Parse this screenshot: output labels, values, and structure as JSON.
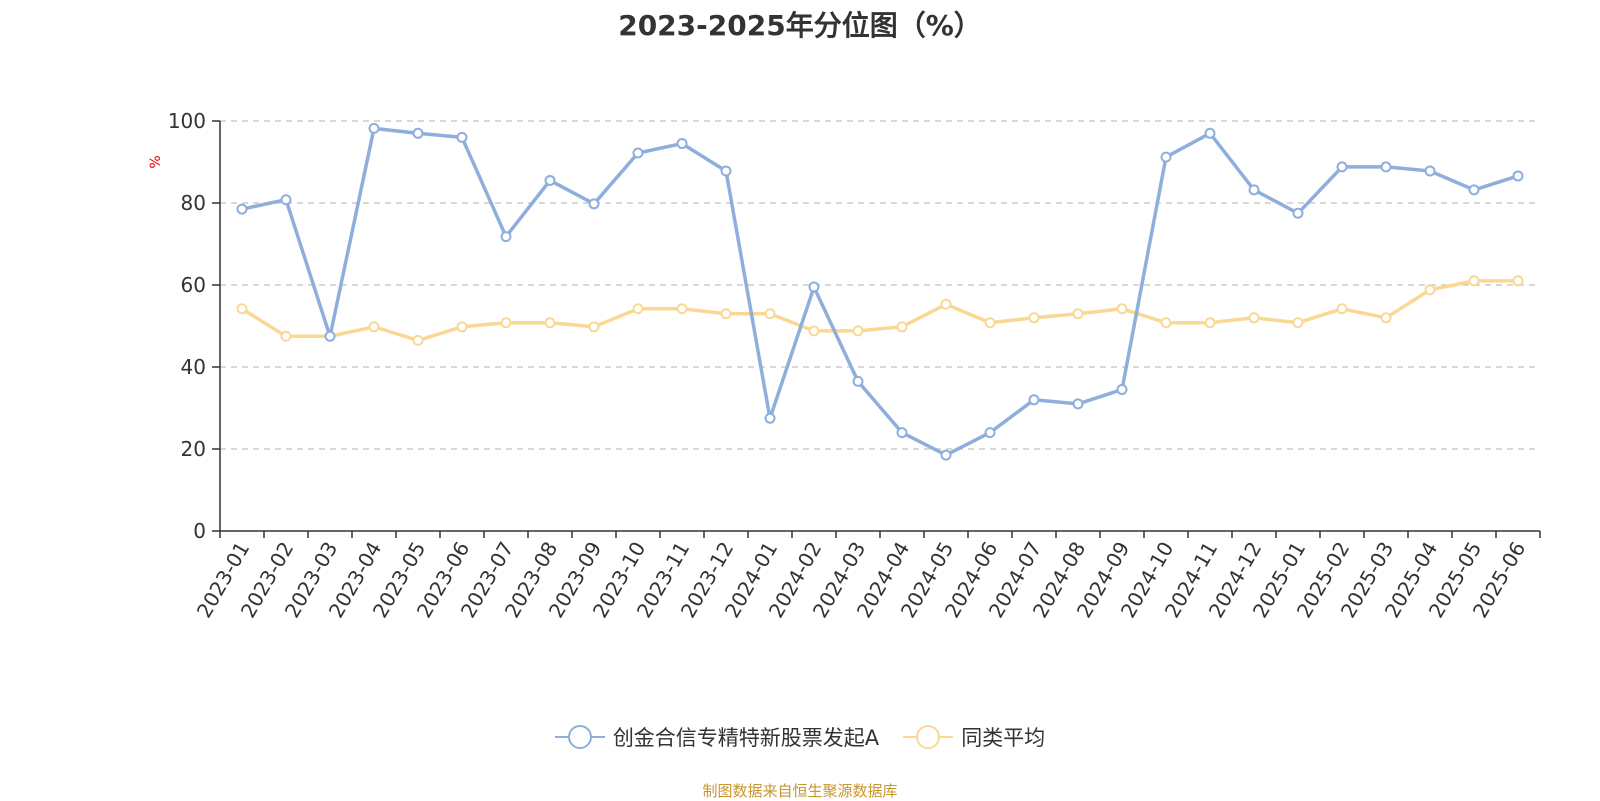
{
  "chart_data": {
    "type": "line",
    "title": "2023-2025年分位图（%）",
    "ylabel": "%",
    "ylim": [
      0,
      100
    ],
    "yticks": [
      "0",
      "20",
      "40",
      "60",
      "80",
      "100"
    ],
    "grid": true,
    "legend_position": "bottom-center",
    "categories": [
      "2023-01",
      "2023-02",
      "2023-03",
      "2023-04",
      "2023-05",
      "2023-06",
      "2023-07",
      "2023-08",
      "2023-09",
      "2023-10",
      "2023-11",
      "2023-12",
      "2024-01",
      "2024-02",
      "2024-03",
      "2024-04",
      "2024-05",
      "2024-06",
      "2024-07",
      "2024-08",
      "2024-09",
      "2024-10",
      "2024-11",
      "2024-12",
      "2025-01",
      "2025-02",
      "2025-03",
      "2025-04",
      "2025-05",
      "2025-06"
    ],
    "series": [
      {
        "name": "创金合信专精特新股票发起A",
        "color": "#8eaedc",
        "values": [
          78.5,
          80.8,
          47.5,
          98.2,
          97.0,
          96.0,
          71.8,
          85.5,
          79.8,
          92.2,
          94.5,
          87.8,
          27.5,
          59.5,
          36.5,
          24.0,
          18.5,
          24.0,
          32.0,
          31.0,
          34.5,
          91.2,
          97.0,
          83.2,
          77.5,
          88.8,
          88.8,
          87.8,
          83.2,
          86.6
        ]
      },
      {
        "name": "同类平均",
        "color": "#fad894",
        "values": [
          54.2,
          47.5,
          47.5,
          49.8,
          46.5,
          49.8,
          50.8,
          50.8,
          49.8,
          54.2,
          54.2,
          53.0,
          53.0,
          48.8,
          48.8,
          49.8,
          55.3,
          50.8,
          52.0,
          53.0,
          54.2,
          50.8,
          50.8,
          52.0,
          50.8,
          54.2,
          52.0,
          58.8,
          61.0,
          61.0
        ]
      }
    ]
  },
  "footer": "制图数据来自恒生聚源数据库"
}
